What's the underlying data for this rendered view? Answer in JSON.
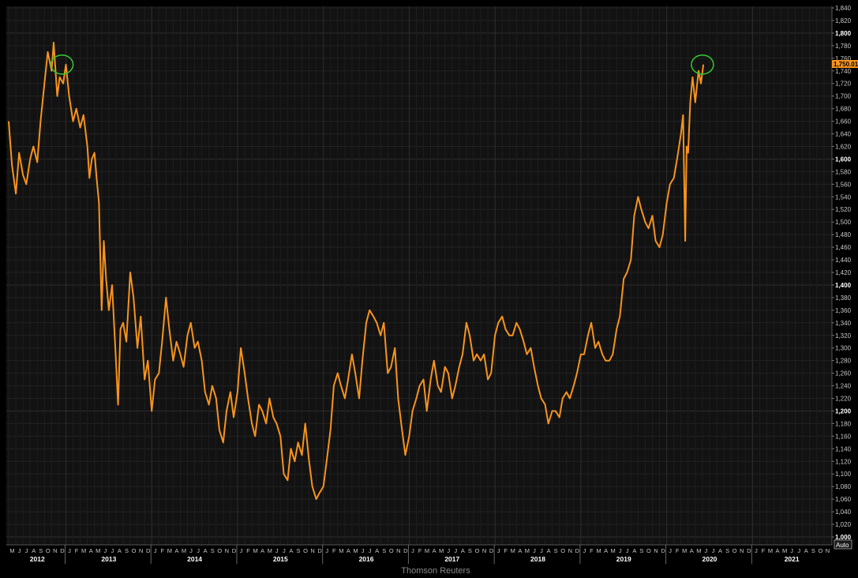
{
  "chart_data": {
    "type": "line",
    "title": "",
    "xlabel": "",
    "ylabel": "",
    "source": "Thomson Reuters",
    "auto_label": "Auto",
    "last_value_label": "1,750.01",
    "ylim": [
      1000,
      1840
    ],
    "y_ticks": [
      "1,000",
      "1,020",
      "1,040",
      "1,060",
      "1,080",
      "1,100",
      "1,120",
      "1,140",
      "1,160",
      "1,180",
      "1,200",
      "1,220",
      "1,240",
      "1,260",
      "1,280",
      "1,300",
      "1,320",
      "1,340",
      "1,360",
      "1,380",
      "1,400",
      "1,420",
      "1,440",
      "1,460",
      "1,480",
      "1,500",
      "1,520",
      "1,540",
      "1,560",
      "1,580",
      "1,600",
      "1,620",
      "1,640",
      "1,660",
      "1,680",
      "1,700",
      "1,720",
      "1,740",
      "1,760",
      "1,780",
      "1,800",
      "1,820",
      "1,840"
    ],
    "x_start": "2012-05",
    "x_end": "2021-11",
    "month_labels": [
      "M",
      "J",
      "J",
      "A",
      "S",
      "O",
      "N",
      "D",
      "J",
      "F",
      "M",
      "A",
      "M",
      "J",
      "J",
      "A",
      "S",
      "O",
      "N",
      "D",
      "J",
      "F",
      "M",
      "A",
      "M",
      "J",
      "J",
      "A",
      "S",
      "O",
      "N",
      "D",
      "J",
      "F",
      "M",
      "A",
      "M",
      "J",
      "J",
      "A",
      "S",
      "O",
      "N",
      "D",
      "J",
      "F",
      "M",
      "A",
      "M",
      "J",
      "J",
      "A",
      "S",
      "O",
      "N",
      "D",
      "J",
      "F",
      "M",
      "A",
      "M",
      "J",
      "J",
      "A",
      "S",
      "O",
      "N",
      "D",
      "J",
      "F",
      "M",
      "A",
      "M",
      "J",
      "J",
      "A",
      "S",
      "O",
      "N",
      "D",
      "J",
      "F",
      "M",
      "A",
      "M",
      "J",
      "J",
      "A",
      "S",
      "O",
      "N",
      "D",
      "J",
      "F",
      "M",
      "A",
      "M",
      "J",
      "J",
      "A",
      "S",
      "O",
      "N",
      "D",
      "J",
      "F",
      "M",
      "A",
      "M",
      "J",
      "J",
      "A",
      "S",
      "O",
      "N"
    ],
    "year_labels": [
      "2012",
      "2013",
      "2014",
      "2015",
      "2016",
      "2017",
      "2018",
      "2019",
      "2020",
      "2021"
    ],
    "series": [
      {
        "color": "#f7941d",
        "points": [
          [
            "2012-05-01",
            1660
          ],
          [
            "2012-05-15",
            1590
          ],
          [
            "2012-06-01",
            1545
          ],
          [
            "2012-06-15",
            1610
          ],
          [
            "2012-07-01",
            1575
          ],
          [
            "2012-07-15",
            1560
          ],
          [
            "2012-08-01",
            1600
          ],
          [
            "2012-08-15",
            1620
          ],
          [
            "2012-09-01",
            1595
          ],
          [
            "2012-09-15",
            1660
          ],
          [
            "2012-10-01",
            1720
          ],
          [
            "2012-10-15",
            1770
          ],
          [
            "2012-11-01",
            1740
          ],
          [
            "2012-11-10",
            1785
          ],
          [
            "2012-11-25",
            1700
          ],
          [
            "2012-12-05",
            1730
          ],
          [
            "2012-12-20",
            1720
          ],
          [
            "2013-01-01",
            1750
          ],
          [
            "2013-01-15",
            1700
          ],
          [
            "2013-02-01",
            1660
          ],
          [
            "2013-02-15",
            1680
          ],
          [
            "2013-03-01",
            1650
          ],
          [
            "2013-03-15",
            1670
          ],
          [
            "2013-04-01",
            1620
          ],
          [
            "2013-04-10",
            1570
          ],
          [
            "2013-04-20",
            1600
          ],
          [
            "2013-05-01",
            1610
          ],
          [
            "2013-05-10",
            1570
          ],
          [
            "2013-05-20",
            1530
          ],
          [
            "2013-06-01",
            1360
          ],
          [
            "2013-06-10",
            1470
          ],
          [
            "2013-06-20",
            1410
          ],
          [
            "2013-07-01",
            1360
          ],
          [
            "2013-07-15",
            1400
          ],
          [
            "2013-08-01",
            1280
          ],
          [
            "2013-08-10",
            1210
          ],
          [
            "2013-08-20",
            1330
          ],
          [
            "2013-09-01",
            1340
          ],
          [
            "2013-09-15",
            1310
          ],
          [
            "2013-10-01",
            1420
          ],
          [
            "2013-10-15",
            1380
          ],
          [
            "2013-11-01",
            1300
          ],
          [
            "2013-11-15",
            1350
          ],
          [
            "2013-12-01",
            1250
          ],
          [
            "2013-12-15",
            1280
          ],
          [
            "2014-01-01",
            1200
          ],
          [
            "2014-01-15",
            1250
          ],
          [
            "2014-02-01",
            1260
          ],
          [
            "2014-02-15",
            1310
          ],
          [
            "2014-03-01",
            1380
          ],
          [
            "2014-03-15",
            1330
          ],
          [
            "2014-04-01",
            1280
          ],
          [
            "2014-04-15",
            1310
          ],
          [
            "2014-05-01",
            1290
          ],
          [
            "2014-05-15",
            1270
          ],
          [
            "2014-06-01",
            1320
          ],
          [
            "2014-06-15",
            1340
          ],
          [
            "2014-07-01",
            1300
          ],
          [
            "2014-07-15",
            1310
          ],
          [
            "2014-08-01",
            1280
          ],
          [
            "2014-08-15",
            1230
          ],
          [
            "2014-09-01",
            1210
          ],
          [
            "2014-09-15",
            1240
          ],
          [
            "2014-10-01",
            1220
          ],
          [
            "2014-10-15",
            1170
          ],
          [
            "2014-11-01",
            1150
          ],
          [
            "2014-11-15",
            1200
          ],
          [
            "2014-12-01",
            1230
          ],
          [
            "2014-12-15",
            1190
          ],
          [
            "2015-01-01",
            1230
          ],
          [
            "2015-01-15",
            1300
          ],
          [
            "2015-02-01",
            1260
          ],
          [
            "2015-02-15",
            1220
          ],
          [
            "2015-03-01",
            1180
          ],
          [
            "2015-03-15",
            1160
          ],
          [
            "2015-04-01",
            1210
          ],
          [
            "2015-04-15",
            1200
          ],
          [
            "2015-05-01",
            1180
          ],
          [
            "2015-05-15",
            1220
          ],
          [
            "2015-06-01",
            1190
          ],
          [
            "2015-06-15",
            1180
          ],
          [
            "2015-07-01",
            1160
          ],
          [
            "2015-07-15",
            1100
          ],
          [
            "2015-08-01",
            1090
          ],
          [
            "2015-08-15",
            1140
          ],
          [
            "2015-09-01",
            1120
          ],
          [
            "2015-09-15",
            1150
          ],
          [
            "2015-10-01",
            1130
          ],
          [
            "2015-10-15",
            1180
          ],
          [
            "2015-11-01",
            1120
          ],
          [
            "2015-11-15",
            1080
          ],
          [
            "2015-12-01",
            1060
          ],
          [
            "2015-12-15",
            1070
          ],
          [
            "2016-01-01",
            1080
          ],
          [
            "2016-01-15",
            1120
          ],
          [
            "2016-02-01",
            1170
          ],
          [
            "2016-02-15",
            1240
          ],
          [
            "2016-03-01",
            1260
          ],
          [
            "2016-03-15",
            1240
          ],
          [
            "2016-04-01",
            1220
          ],
          [
            "2016-04-15",
            1250
          ],
          [
            "2016-05-01",
            1290
          ],
          [
            "2016-05-15",
            1260
          ],
          [
            "2016-06-01",
            1220
          ],
          [
            "2016-06-15",
            1280
          ],
          [
            "2016-07-01",
            1340
          ],
          [
            "2016-07-15",
            1360
          ],
          [
            "2016-08-01",
            1350
          ],
          [
            "2016-08-15",
            1340
          ],
          [
            "2016-09-01",
            1320
          ],
          [
            "2016-09-15",
            1340
          ],
          [
            "2016-10-01",
            1260
          ],
          [
            "2016-10-15",
            1270
          ],
          [
            "2016-11-01",
            1300
          ],
          [
            "2016-11-15",
            1220
          ],
          [
            "2016-12-01",
            1170
          ],
          [
            "2016-12-15",
            1130
          ],
          [
            "2017-01-01",
            1160
          ],
          [
            "2017-01-15",
            1200
          ],
          [
            "2017-02-01",
            1220
          ],
          [
            "2017-02-15",
            1240
          ],
          [
            "2017-03-01",
            1250
          ],
          [
            "2017-03-15",
            1200
          ],
          [
            "2017-04-01",
            1250
          ],
          [
            "2017-04-15",
            1280
          ],
          [
            "2017-05-01",
            1240
          ],
          [
            "2017-05-15",
            1230
          ],
          [
            "2017-06-01",
            1270
          ],
          [
            "2017-06-15",
            1260
          ],
          [
            "2017-07-01",
            1220
          ],
          [
            "2017-07-15",
            1240
          ],
          [
            "2017-08-01",
            1270
          ],
          [
            "2017-08-15",
            1290
          ],
          [
            "2017-09-01",
            1340
          ],
          [
            "2017-09-15",
            1320
          ],
          [
            "2017-10-01",
            1280
          ],
          [
            "2017-10-15",
            1290
          ],
          [
            "2017-11-01",
            1280
          ],
          [
            "2017-11-15",
            1290
          ],
          [
            "2017-12-01",
            1250
          ],
          [
            "2017-12-15",
            1260
          ],
          [
            "2018-01-01",
            1320
          ],
          [
            "2018-01-15",
            1340
          ],
          [
            "2018-02-01",
            1350
          ],
          [
            "2018-02-15",
            1330
          ],
          [
            "2018-03-01",
            1320
          ],
          [
            "2018-03-15",
            1320
          ],
          [
            "2018-04-01",
            1340
          ],
          [
            "2018-04-15",
            1330
          ],
          [
            "2018-05-01",
            1310
          ],
          [
            "2018-05-15",
            1290
          ],
          [
            "2018-06-01",
            1300
          ],
          [
            "2018-06-15",
            1270
          ],
          [
            "2018-07-01",
            1240
          ],
          [
            "2018-07-15",
            1220
          ],
          [
            "2018-08-01",
            1210
          ],
          [
            "2018-08-15",
            1180
          ],
          [
            "2018-09-01",
            1200
          ],
          [
            "2018-09-15",
            1200
          ],
          [
            "2018-10-01",
            1190
          ],
          [
            "2018-10-15",
            1220
          ],
          [
            "2018-11-01",
            1230
          ],
          [
            "2018-11-15",
            1220
          ],
          [
            "2018-12-01",
            1240
          ],
          [
            "2018-12-15",
            1260
          ],
          [
            "2019-01-01",
            1290
          ],
          [
            "2019-01-15",
            1290
          ],
          [
            "2019-02-01",
            1320
          ],
          [
            "2019-02-15",
            1340
          ],
          [
            "2019-03-01",
            1300
          ],
          [
            "2019-03-15",
            1310
          ],
          [
            "2019-04-01",
            1290
          ],
          [
            "2019-04-15",
            1280
          ],
          [
            "2019-05-01",
            1280
          ],
          [
            "2019-05-15",
            1290
          ],
          [
            "2019-06-01",
            1330
          ],
          [
            "2019-06-15",
            1350
          ],
          [
            "2019-07-01",
            1410
          ],
          [
            "2019-07-15",
            1420
          ],
          [
            "2019-08-01",
            1440
          ],
          [
            "2019-08-15",
            1510
          ],
          [
            "2019-09-01",
            1540
          ],
          [
            "2019-09-15",
            1520
          ],
          [
            "2019-10-01",
            1500
          ],
          [
            "2019-10-15",
            1490
          ],
          [
            "2019-11-01",
            1510
          ],
          [
            "2019-11-15",
            1470
          ],
          [
            "2019-12-01",
            1460
          ],
          [
            "2019-12-15",
            1480
          ],
          [
            "2020-01-01",
            1530
          ],
          [
            "2020-01-15",
            1560
          ],
          [
            "2020-02-01",
            1570
          ],
          [
            "2020-02-15",
            1600
          ],
          [
            "2020-03-01",
            1640
          ],
          [
            "2020-03-10",
            1670
          ],
          [
            "2020-03-19",
            1470
          ],
          [
            "2020-03-25",
            1620
          ],
          [
            "2020-04-01",
            1610
          ],
          [
            "2020-04-10",
            1690
          ],
          [
            "2020-04-20",
            1730
          ],
          [
            "2020-05-01",
            1690
          ],
          [
            "2020-05-15",
            1740
          ],
          [
            "2020-05-25",
            1720
          ],
          [
            "2020-06-05",
            1750
          ]
        ]
      }
    ],
    "annotations": [
      {
        "type": "circle",
        "color": "#33cc33",
        "x": "2012-12-15",
        "y": 1750
      },
      {
        "type": "circle",
        "color": "#33cc33",
        "x": "2020-06-01",
        "y": 1750
      }
    ]
  }
}
